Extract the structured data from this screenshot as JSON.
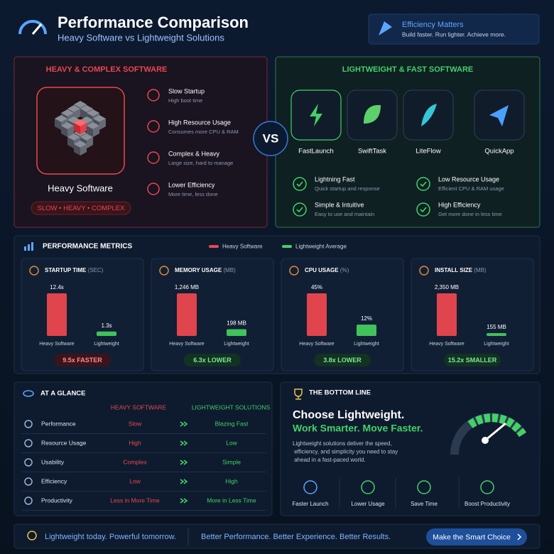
{
  "header": {
    "title": "Performance Comparison",
    "subtitle": "Heavy Software vs Lightweight Solutions"
  },
  "callout": {
    "title": "Efficiency Matters",
    "text": "Build faster. Run lighter. Achieve more."
  },
  "heavy": {
    "heading": "HEAVY & COMPLEX SOFTWARE",
    "label": "Heavy Software",
    "tag": "SLOW • HEAVY • COMPLEX",
    "items": [
      {
        "title": "Slow Startup",
        "text": "High boot time"
      },
      {
        "title": "High Resource Usage",
        "text": "Consumes more CPU & RAM"
      },
      {
        "title": "Complex & Heavy",
        "text": "Large size, hard to manage"
      },
      {
        "title": "Lower Efficiency",
        "text": "More time, less done"
      }
    ]
  },
  "vs": "VS",
  "light": {
    "heading": "LIGHTWEIGHT & FAST SOFTWARE",
    "apps": [
      "FastLaunch",
      "SwiftTask",
      "LiteFlow",
      "QuickApp"
    ],
    "features": [
      {
        "title": "Lightning Fast",
        "text": "Quick startup and response"
      },
      {
        "title": "Low Resource Usage",
        "text": "Efficient CPU & RAM usage"
      },
      {
        "title": "Simple & Intuitive",
        "text": "Easy to use and maintain"
      },
      {
        "title": "High Efficiency",
        "text": "Get more done in less time"
      }
    ]
  },
  "metrics": {
    "title": "PERFORMANCE METRICS",
    "legend": [
      "Heavy Software",
      "Lightweight Average"
    ]
  },
  "chart_data": [
    {
      "type": "bar",
      "title": "STARTUP TIME",
      "unit": "(SEC)",
      "categories": [
        "Heavy Software",
        "Lightweight"
      ],
      "values": [
        12.4,
        1.3
      ],
      "value_labels": [
        "12.4s",
        "1.3s"
      ],
      "colors": [
        "#e0444c",
        "#3fc35a"
      ],
      "badge": "9.5x FASTER"
    },
    {
      "type": "bar",
      "title": "MEMORY USAGE",
      "unit": "(MB)",
      "categories": [
        "Heavy Software",
        "Lightweight"
      ],
      "values": [
        1246,
        198
      ],
      "value_labels": [
        "1,246 MB",
        "198 MB"
      ],
      "colors": [
        "#e0444c",
        "#3fc35a"
      ],
      "badge": "6.3x LOWER"
    },
    {
      "type": "bar",
      "title": "CPU USAGE",
      "unit": "(%)",
      "categories": [
        "Heavy Software",
        "Lightweight"
      ],
      "values": [
        45,
        12
      ],
      "value_labels": [
        "45%",
        "12%"
      ],
      "colors": [
        "#e0444c",
        "#3fc35a"
      ],
      "badge": "3.8x LOWER"
    },
    {
      "type": "bar",
      "title": "INSTALL SIZE",
      "unit": "(MB)",
      "categories": [
        "Heavy Software",
        "Lightweight"
      ],
      "values": [
        2350,
        155
      ],
      "value_labels": [
        "2,350 MB",
        "155 MB"
      ],
      "colors": [
        "#e0444c",
        "#3fc35a"
      ],
      "badge": "15.2x SMALLER"
    }
  ],
  "glance": {
    "title": "AT A GLANCE",
    "columns": [
      "HEAVY SOFTWARE",
      "LIGHTWEIGHT SOLUTIONS"
    ],
    "rows": [
      [
        "Performance",
        "Slow",
        "Blazing Fast"
      ],
      [
        "Resource Usage",
        "High",
        "Low"
      ],
      [
        "Usability",
        "Complex",
        "Simple"
      ],
      [
        "Efficiency",
        "Low",
        "High"
      ],
      [
        "Productivity",
        "Less in More Time",
        "More in Less Time"
      ]
    ]
  },
  "bottom": {
    "title": "THE BOTTOM LINE",
    "headline": "Choose Lightweight.",
    "subhead": "Work Smarter. Move Faster.",
    "text": "Lightweight solutions deliver the speed, efficiency, and simplicity you need to stay ahead in a fast-paced world.",
    "items": [
      "Faster Launch",
      "Lower Usage",
      "Save Time",
      "Boost Productivity"
    ]
  },
  "footer": {
    "left": "Lightweight today. Powerful tomorrow.",
    "middle": "Better Performance. Better Experience. Better Results.",
    "button": "Make the Smart Choice"
  }
}
